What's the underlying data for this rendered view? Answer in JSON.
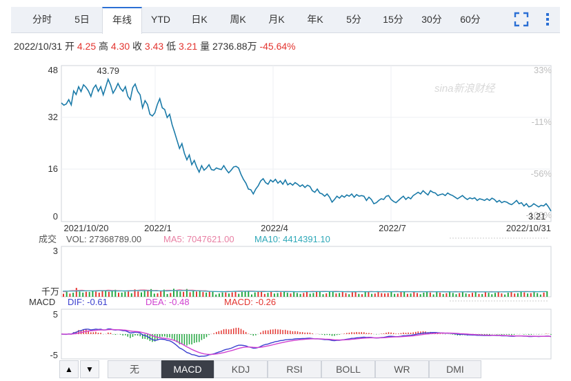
{
  "tabs": [
    {
      "label": "分时"
    },
    {
      "label": "5日"
    },
    {
      "label": "年线",
      "active": true
    },
    {
      "label": "YTD"
    },
    {
      "label": "日K"
    },
    {
      "label": "周K"
    },
    {
      "label": "月K"
    },
    {
      "label": "年K"
    },
    {
      "label": "5分"
    },
    {
      "label": "15分"
    },
    {
      "label": "30分"
    },
    {
      "label": "60分"
    }
  ],
  "tools": {
    "fullscreen_icon": "fullscreen-icon",
    "more_icon": "more-vertical-icon"
  },
  "info": {
    "date": "2022/10/31",
    "open_label": "开",
    "open": "4.25",
    "high_label": "高",
    "high": "4.30",
    "close_label": "收",
    "close": "3.43",
    "low_label": "低",
    "low": "3.21",
    "volume_label": "量",
    "volume": "2736.88万",
    "change": "-45.64%"
  },
  "watermark": "sina新浪财经",
  "colors": {
    "price_line": "#1a7aa8",
    "up": "#e3342f",
    "down": "#22a63f",
    "ma5": "#e87fa3",
    "ma10": "#2ea8b8",
    "dif": "#3a3fcf",
    "dea": "#d040d0",
    "macd_label": "#e3342f",
    "axis_right": "#bdbdbd",
    "tab_accent": "#2a6fd4"
  },
  "chart_data": [
    {
      "type": "line",
      "name": "price",
      "y_ticks": [
        "48",
        "32",
        "16",
        "0"
      ],
      "y_right_ticks": [
        "33%",
        "-11%",
        "-56%",
        "-100%"
      ],
      "x_ticks": [
        "2021/10/20",
        "2022/1",
        "2022/4",
        "2022/7",
        "2022/10/31"
      ],
      "ylim": [
        0,
        48
      ],
      "max_label": "43.79",
      "min_label": "3.21",
      "series": [
        {
          "values": [
            36.5,
            35.8,
            36.2,
            37.5,
            35.9,
            40.2,
            39.1,
            41.5,
            40.0,
            42.1,
            41.3,
            40.2,
            38.5,
            41.0,
            42.0,
            40.1,
            41.5,
            39.0,
            41.3,
            43.79,
            42.0,
            39.5,
            40.8,
            42.5,
            41.0,
            40.1,
            41.5,
            38.6,
            37.5,
            41.2,
            42.3,
            40.1,
            39.0,
            35.0,
            37.2,
            36.0,
            33.0,
            32.5,
            33.5,
            36.0,
            37.8,
            35.0,
            34.5,
            32.0,
            33.0,
            29.8,
            27.5,
            25.0,
            22.5,
            24.0,
            21.0,
            19.0,
            20.5,
            17.5,
            18.8,
            16.8,
            15.2,
            17.2,
            15.8,
            16.5,
            17.5,
            16.0,
            15.8,
            16.5,
            16.2,
            16.0,
            17.2,
            16.0,
            15.0,
            15.8,
            16.8,
            17.0,
            16.5,
            14.5,
            13.0,
            11.8,
            10.0,
            9.8,
            8.5,
            10.0,
            11.0,
            12.5,
            13.2,
            12.0,
            11.5,
            12.8,
            12.2,
            13.0,
            11.8,
            12.5,
            11.5,
            12.8,
            11.3,
            11.8,
            11.2,
            12.0,
            11.5,
            10.8,
            11.3,
            10.5,
            11.2,
            10.8,
            9.5,
            9.0,
            10.0,
            8.8,
            8.5,
            7.8,
            8.5,
            7.5,
            6.0,
            6.8,
            7.8,
            7.2,
            8.0,
            7.5,
            8.2,
            7.8,
            8.5,
            7.5,
            8.3,
            7.8,
            8.0,
            7.8,
            6.5,
            7.5,
            6.8,
            5.5,
            5.8,
            6.5,
            7.0,
            6.8,
            7.8,
            8.0,
            6.8,
            6.2,
            5.8,
            6.5,
            7.2,
            7.8,
            6.8,
            7.5,
            7.0,
            8.0,
            8.5,
            9.0,
            8.5,
            9.5,
            8.8,
            8.2,
            9.5,
            9.0,
            8.8,
            8.0,
            8.3,
            8.5,
            8.0,
            8.8,
            8.3,
            8.0,
            7.5,
            7.0,
            7.5,
            8.0,
            7.3,
            6.8,
            7.3,
            7.0,
            7.3,
            6.5,
            7.0,
            6.8,
            6.5,
            7.0,
            6.5,
            7.2,
            6.8,
            6.0,
            6.5,
            5.8,
            6.2,
            6.0,
            5.5,
            5.2,
            5.8,
            6.5,
            5.5,
            5.8,
            4.8,
            5.5,
            4.5,
            4.8,
            5.5,
            5.0,
            4.5,
            5.0,
            4.8,
            5.5,
            4.5,
            3.21
          ]
        }
      ]
    },
    {
      "type": "bar",
      "name": "volume",
      "label": "成交",
      "vol_label": "VOL: 27368789.00",
      "ma5_label": "MA5: 7047621.00",
      "ma10_label": "MA10: 4414391.10",
      "y_ticks": [
        "3"
      ],
      "unit_label": "千万",
      "ylim": [
        0,
        3
      ]
    },
    {
      "type": "bar",
      "name": "macd",
      "label": "MACD",
      "dif_label": "DIF: -0.61",
      "dea_label": "DEA: -0.48",
      "macd_label": "MACD: -0.26",
      "y_ticks": [
        "5",
        "-5"
      ],
      "ylim": [
        -6,
        6
      ]
    }
  ],
  "bottom": {
    "up_arrow": "▲",
    "down_arrow": "▼",
    "indicators": [
      {
        "label": "无"
      },
      {
        "label": "MACD",
        "active": true
      },
      {
        "label": "KDJ"
      },
      {
        "label": "RSI"
      },
      {
        "label": "BOLL"
      },
      {
        "label": "WR"
      },
      {
        "label": "DMI"
      }
    ]
  }
}
